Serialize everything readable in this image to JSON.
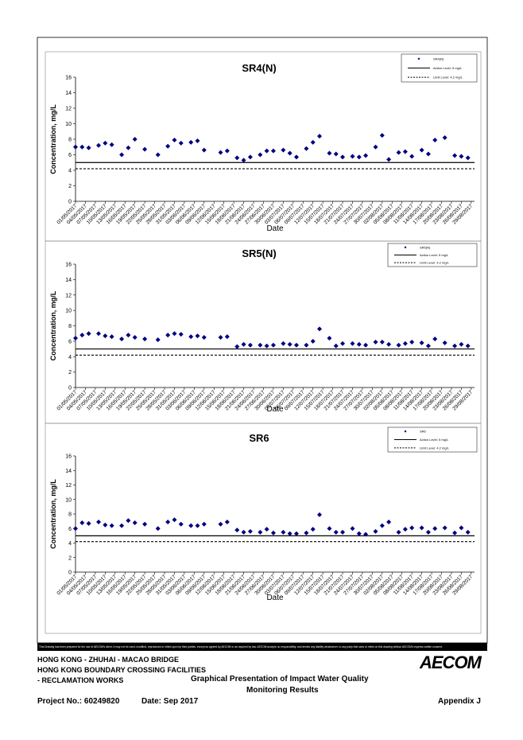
{
  "chart_data": [
    {
      "type": "scatter",
      "title": "SR4(N)",
      "y_label": "Concentration, mg/L",
      "x_label": "Date",
      "series": [
        {
          "name": "SR4(N)",
          "color": "#000080",
          "marker": "diamond",
          "x": [
            "01/05/2017",
            "03/05/2017",
            "05/05/2017",
            "08/05/2017",
            "10/05/2017",
            "12/05/2017",
            "15/05/2017",
            "17/05/2017",
            "19/05/2017",
            "22/05/2017",
            "26/05/2017",
            "29/05/2017",
            "31/05/2017",
            "02/06/2017",
            "05/06/2017",
            "07/06/2017",
            "09/06/2017",
            "14/06/2017",
            "16/06/2017",
            "19/06/2017",
            "21/06/2017",
            "23/06/2017",
            "26/06/2017",
            "28/06/2017",
            "30/06/2017",
            "03/07/2017",
            "05/07/2017",
            "07/07/2017",
            "10/07/2017",
            "12/07/2017",
            "14/07/2017",
            "17/07/2017",
            "19/07/2017",
            "21/07/2017",
            "24/07/2017",
            "26/07/2017",
            "28/07/2017",
            "31/07/2017",
            "02/08/2017",
            "04/08/2017",
            "07/08/2017",
            "09/08/2017",
            "11/08/2017",
            "14/08/2017",
            "16/08/2017",
            "18/08/2017",
            "21/08/2017",
            "24/08/2017",
            "26/08/2017",
            "28/08/2017"
          ],
          "values": [
            7.0,
            7.0,
            6.9,
            7.2,
            7.5,
            7.3,
            6.0,
            6.9,
            8.0,
            6.7,
            6.0,
            7.1,
            7.9,
            7.5,
            7.6,
            7.8,
            6.6,
            6.3,
            6.5,
            5.6,
            5.3,
            5.7,
            6.0,
            6.5,
            6.5,
            6.6,
            6.2,
            5.7,
            6.8,
            7.6,
            8.4,
            6.2,
            6.1,
            5.7,
            5.8,
            5.7,
            5.9,
            7.0,
            8.5,
            5.4,
            6.3,
            6.4,
            5.8,
            6.6,
            6.1,
            7.9,
            8.2,
            5.9,
            5.8,
            5.6
          ]
        }
      ],
      "reference_lines": [
        {
          "name": "Action Level: 5 mg/L",
          "value": 5,
          "style": "solid"
        },
        {
          "name": "Limit Level: 4.2 mg/L",
          "value": 4.2,
          "style": "dashed"
        }
      ],
      "xlim": [
        "01/05/2017",
        "30/08/2017"
      ],
      "xticks": [
        "01/05/2017",
        "04/05/2017",
        "07/05/2017",
        "10/05/2017",
        "13/05/2017",
        "16/05/2017",
        "19/05/2017",
        "22/05/2017",
        "25/05/2017",
        "28/05/2017",
        "31/05/2017",
        "03/06/2017",
        "06/06/2017",
        "09/06/2017",
        "12/06/2017",
        "15/06/2017",
        "18/06/2017",
        "21/06/2017",
        "24/06/2017",
        "27/06/2017",
        "30/06/2017",
        "03/07/2017",
        "06/07/2017",
        "09/07/2017",
        "12/07/2017",
        "15/07/2017",
        "18/07/2017",
        "21/07/2017",
        "24/07/2017",
        "27/07/2017",
        "30/07/2017",
        "02/08/2017",
        "05/08/2017",
        "08/08/2017",
        "11/08/2017",
        "14/08/2017",
        "17/08/2017",
        "20/08/2017",
        "23/08/2017",
        "26/08/2017",
        "29/08/2017"
      ],
      "ylim": [
        0,
        16
      ],
      "yticks": [
        0,
        2,
        4,
        6,
        8,
        10,
        12,
        14,
        16
      ],
      "grid": false,
      "legend": "top-right"
    },
    {
      "type": "scatter",
      "title": "SR5(N)",
      "y_label": "Concentration, mg/L",
      "x_label": "Date",
      "series": [
        {
          "name": "SR5(N)",
          "color": "#000080",
          "marker": "diamond",
          "x": [
            "01/05/2017",
            "03/05/2017",
            "05/05/2017",
            "08/05/2017",
            "10/05/2017",
            "12/05/2017",
            "15/05/2017",
            "17/05/2017",
            "19/05/2017",
            "22/05/2017",
            "26/05/2017",
            "29/05/2017",
            "31/05/2017",
            "02/06/2017",
            "05/06/2017",
            "07/06/2017",
            "09/06/2017",
            "14/06/2017",
            "16/06/2017",
            "19/06/2017",
            "21/06/2017",
            "23/06/2017",
            "26/06/2017",
            "28/06/2017",
            "30/06/2017",
            "03/07/2017",
            "05/07/2017",
            "07/07/2017",
            "10/07/2017",
            "12/07/2017",
            "14/07/2017",
            "17/07/2017",
            "19/07/2017",
            "21/07/2017",
            "24/07/2017",
            "26/07/2017",
            "28/07/2017",
            "31/07/2017",
            "02/08/2017",
            "04/08/2017",
            "07/08/2017",
            "09/08/2017",
            "11/08/2017",
            "14/08/2017",
            "16/08/2017",
            "18/08/2017",
            "21/08/2017",
            "24/08/2017",
            "26/08/2017",
            "28/08/2017"
          ],
          "values": [
            6.4,
            6.8,
            7.0,
            7.0,
            6.7,
            6.6,
            6.3,
            6.8,
            6.5,
            6.3,
            6.2,
            6.8,
            7.0,
            6.9,
            6.6,
            6.7,
            6.5,
            6.5,
            6.6,
            5.3,
            5.6,
            5.5,
            5.5,
            5.4,
            5.5,
            5.7,
            5.6,
            5.5,
            5.5,
            6.0,
            7.6,
            6.4,
            5.4,
            5.7,
            5.7,
            5.6,
            5.5,
            5.9,
            5.9,
            5.6,
            5.5,
            5.7,
            5.9,
            5.8,
            5.4,
            6.3,
            5.8,
            5.4,
            5.6,
            5.4
          ]
        }
      ],
      "reference_lines": [
        {
          "name": "Action Level: 5 mg/L",
          "value": 5,
          "style": "solid"
        },
        {
          "name": "Limit Level: 4.2 mg/L",
          "value": 4.2,
          "style": "dashed"
        }
      ],
      "xlim": [
        "01/05/2017",
        "30/08/2017"
      ],
      "xticks": [
        "01/05/2017",
        "04/05/2017",
        "07/05/2017",
        "10/05/2017",
        "13/05/2017",
        "16/05/2017",
        "19/05/2017",
        "22/05/2017",
        "25/05/2017",
        "28/05/2017",
        "31/05/2017",
        "03/06/2017",
        "06/06/2017",
        "09/06/2017",
        "12/06/2017",
        "15/06/2017",
        "18/06/2017",
        "21/06/2017",
        "24/06/2017",
        "27/06/2017",
        "30/06/2017",
        "03/07/2017",
        "06/07/2017",
        "09/07/2017",
        "12/07/2017",
        "15/07/2017",
        "18/07/2017",
        "21/07/2017",
        "24/07/2017",
        "27/07/2017",
        "30/07/2017",
        "02/08/2017",
        "05/08/2017",
        "08/08/2017",
        "11/08/2017",
        "14/08/2017",
        "17/08/2017",
        "20/08/2017",
        "23/08/2017",
        "26/08/2017",
        "29/08/2017"
      ],
      "ylim": [
        0,
        16
      ],
      "yticks": [
        0,
        2,
        4,
        6,
        8,
        10,
        12,
        14,
        16
      ],
      "grid": false,
      "legend": "top-right"
    },
    {
      "type": "scatter",
      "title": "SR6",
      "y_label": "Concentration, mg/L",
      "x_label": "Date",
      "series": [
        {
          "name": "SR6",
          "color": "#000080",
          "marker": "diamond",
          "x": [
            "01/05/2017",
            "03/05/2017",
            "05/05/2017",
            "08/05/2017",
            "10/05/2017",
            "12/05/2017",
            "15/05/2017",
            "17/05/2017",
            "19/05/2017",
            "22/05/2017",
            "26/05/2017",
            "29/05/2017",
            "31/05/2017",
            "02/06/2017",
            "05/06/2017",
            "07/06/2017",
            "09/06/2017",
            "14/06/2017",
            "16/06/2017",
            "19/06/2017",
            "21/06/2017",
            "23/06/2017",
            "26/06/2017",
            "28/06/2017",
            "30/06/2017",
            "03/07/2017",
            "05/07/2017",
            "07/07/2017",
            "10/07/2017",
            "12/07/2017",
            "14/07/2017",
            "17/07/2017",
            "19/07/2017",
            "21/07/2017",
            "24/07/2017",
            "26/07/2017",
            "28/07/2017",
            "31/07/2017",
            "02/08/2017",
            "04/08/2017",
            "07/08/2017",
            "09/08/2017",
            "11/08/2017",
            "14/08/2017",
            "16/08/2017",
            "18/08/2017",
            "21/08/2017",
            "24/08/2017",
            "26/08/2017",
            "28/08/2017"
          ],
          "values": [
            6.0,
            6.8,
            6.7,
            6.9,
            6.5,
            6.4,
            6.4,
            7.1,
            6.8,
            6.6,
            6.0,
            6.9,
            7.2,
            6.6,
            6.4,
            6.4,
            6.6,
            6.6,
            6.9,
            5.8,
            5.5,
            5.6,
            5.5,
            5.9,
            5.4,
            5.5,
            5.3,
            5.3,
            5.4,
            5.9,
            7.9,
            6.0,
            5.5,
            5.5,
            6.0,
            5.3,
            5.2,
            5.6,
            6.4,
            6.9,
            5.5,
            5.9,
            6.1,
            6.1,
            5.5,
            6.0,
            6.1,
            5.4,
            6.1,
            5.5
          ]
        }
      ],
      "reference_lines": [
        {
          "name": "Action Level: 5 mg/L",
          "value": 5,
          "style": "solid"
        },
        {
          "name": "Limit Level: 4.2 mg/L",
          "value": 4.2,
          "style": "dashed"
        }
      ],
      "xlim": [
        "01/05/2017",
        "30/08/2017"
      ],
      "xticks": [
        "01/05/2017",
        "04/05/2017",
        "07/05/2017",
        "10/05/2017",
        "13/05/2017",
        "16/05/2017",
        "19/05/2017",
        "22/05/2017",
        "25/05/2017",
        "28/05/2017",
        "31/05/2017",
        "03/06/2017",
        "06/06/2017",
        "09/06/2017",
        "12/06/2017",
        "15/06/2017",
        "18/06/2017",
        "21/06/2017",
        "24/06/2017",
        "27/06/2017",
        "30/06/2017",
        "03/07/2017",
        "06/07/2017",
        "09/07/2017",
        "12/07/2017",
        "15/07/2017",
        "18/07/2017",
        "21/07/2017",
        "24/07/2017",
        "27/07/2017",
        "30/07/2017",
        "02/08/2017",
        "05/08/2017",
        "08/08/2017",
        "11/08/2017",
        "14/08/2017",
        "17/08/2017",
        "20/08/2017",
        "23/08/2017",
        "26/08/2017",
        "29/08/2017"
      ],
      "ylim": [
        0,
        16
      ],
      "yticks": [
        0,
        2,
        4,
        6,
        8,
        10,
        12,
        14,
        16
      ],
      "grid": false,
      "legend": "top-right"
    }
  ],
  "disclaimer": "This Drawing has been prepared for the use of AECOM's client. It may not be used, modified, reproduced or relied upon by third parties, except as agreed by AECOM or as required by law. AECOM accepts no responsibility, and denies any liability whatsoever, to any party that uses or relies on this drawing without AECOM's express written consent.",
  "footer": {
    "project_lines": [
      "HONG KONG - ZHUHAI - MACAO BRIDGE",
      "HONG KONG BOUNDARY CROSSING FACILITIES",
      "- RECLAMATION WORKS"
    ],
    "title_lines": [
      "Graphical Presentation of Impact Water Quality",
      "Monitoring Results"
    ],
    "logo": "AECOM",
    "project_no": "Project No.: 60249820",
    "date": "Date: Sep 2017",
    "appendix": "Appendix J"
  }
}
